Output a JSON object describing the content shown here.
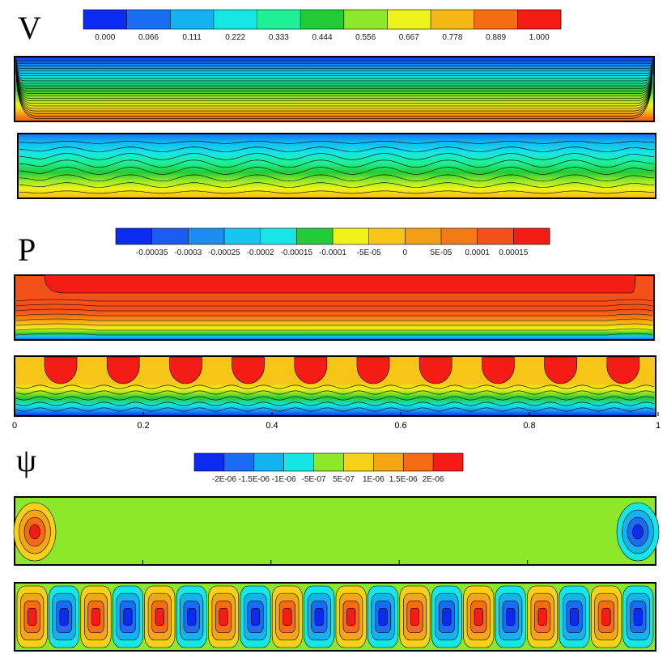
{
  "panels": [
    {
      "symbol": "V",
      "colorbar": {
        "labels": [
          "0.000",
          "0.066",
          "0.111",
          "0.222",
          "0.333",
          "0.444",
          "0.556",
          "0.667",
          "0.778",
          "0.889",
          "1.000"
        ],
        "colors": [
          "#0b2bf0",
          "#1a6cf2",
          "#13b3f2",
          "#16e6e6",
          "#1ef096",
          "#22cc38",
          "#8ee82a",
          "#eef41a",
          "#f5b915",
          "#f46d14",
          "#f41c14"
        ]
      }
    },
    {
      "symbol": "P",
      "colorbar": {
        "labels": [
          "-0.00035",
          "-0.0003",
          "-0.00025",
          "-0.0002",
          "-0.00015",
          "-0.0001",
          "-5E-05",
          "0",
          "5E-05",
          "0.0001",
          "0.00015"
        ],
        "colors": [
          "#0b2bf0",
          "#1a5cf0",
          "#1a8cf2",
          "#16c6f2",
          "#16e6e6",
          "#22cc38",
          "#f0f21a",
          "#f5c518",
          "#f59d16",
          "#f47a15",
          "#f4501a",
          "#f41c14"
        ]
      }
    },
    {
      "symbol": "ψ",
      "colorbar": {
        "labels": [
          "-2E-06",
          "-1.5E-06",
          "-1E-06",
          "-5E-07",
          "5E-07",
          "1E-06",
          "1.5E-06",
          "2E-06"
        ],
        "colors": [
          "#0b2bf0",
          "#1a6cf2",
          "#13b3f2",
          "#16e6e6",
          "#8ee82a",
          "#f5d118",
          "#f5a516",
          "#f46d14",
          "#f41c14"
        ]
      }
    }
  ],
  "x_axis": {
    "tick_labels": [
      "0",
      "0.2",
      "0.4",
      "0.6",
      "0.8",
      "1"
    ]
  },
  "chart_data": [
    {
      "type": "heatmap",
      "variable": "V",
      "xlim": [
        0,
        1
      ],
      "clim": [
        0.0,
        1.0
      ],
      "levels": [
        0.0,
        0.066,
        0.111,
        0.222,
        0.333,
        0.444,
        0.556,
        0.667,
        0.778,
        0.889,
        1.0
      ],
      "subplots": [
        {
          "description": "velocity increasing from 0 at top wall to 1 at bottom, smooth layered field"
        },
        {
          "description": "velocity field with periodic wavy contours, 10 wave periods"
        }
      ]
    },
    {
      "type": "heatmap",
      "variable": "P",
      "xlim": [
        0,
        1
      ],
      "clim": [
        -0.00035,
        0.00015
      ],
      "levels": [
        -0.00035,
        -0.0003,
        -0.00025,
        -0.0002,
        -0.00015,
        -0.0001,
        -5e-05,
        0,
        5e-05,
        0.0001,
        0.00015
      ],
      "subplots": [
        {
          "description": "high pressure band in upper region, decreasing toward bottom wall"
        },
        {
          "description": "10 high pressure cells along top wall, wavy low pressure layers near bottom"
        }
      ]
    },
    {
      "type": "heatmap",
      "variable": "ψ",
      "xlim": [
        0,
        1
      ],
      "clim": [
        -2e-06,
        2e-06
      ],
      "levels": [
        -2e-06,
        -1.5e-06,
        -1e-06,
        -5e-07,
        5e-07,
        1e-06,
        1.5e-06,
        2e-06
      ],
      "subplots": [
        {
          "description": "two vortices, positive at left end, negative at right end, near zero elsewhere"
        },
        {
          "description": "20 alternating positive/negative vortex cells across the domain"
        }
      ]
    }
  ]
}
